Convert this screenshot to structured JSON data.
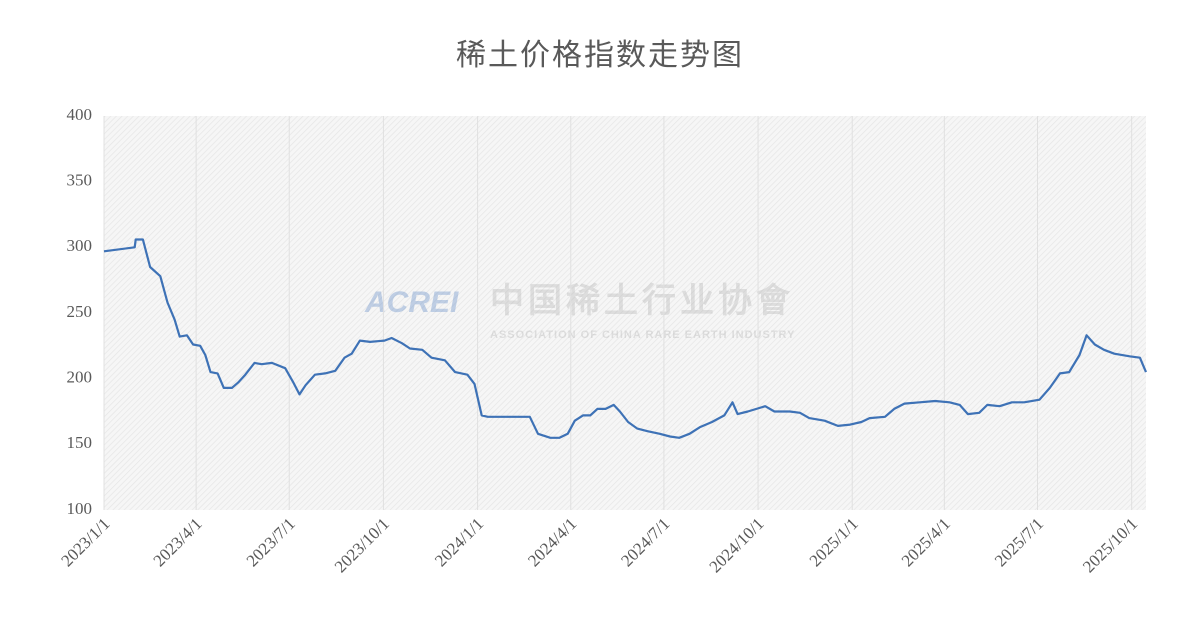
{
  "chart_data": {
    "type": "line",
    "title": "稀土价格指数走势图",
    "watermark": {
      "logo": "ACREI",
      "name": "中国稀土行业协會",
      "subtitle": "ASSOCIATION OF CHINA RARE EARTH INDUSTRY"
    },
    "x": [
      "2023/1/1",
      "2023/1/31",
      "2023/2/1",
      "2023/2/8",
      "2023/2/15",
      "2023/2/25",
      "2023/3/4",
      "2023/3/11",
      "2023/3/16",
      "2023/3/23",
      "2023/3/29",
      "2023/4/5",
      "2023/4/10",
      "2023/4/15",
      "2023/4/22",
      "2023/4/28",
      "2023/5/6",
      "2023/5/12",
      "2023/5/19",
      "2023/5/28",
      "2023/6/4",
      "2023/6/14",
      "2023/6/27",
      "2023/7/5",
      "2023/7/11",
      "2023/7/17",
      "2023/7/26",
      "2023/8/5",
      "2023/8/15",
      "2023/8/24",
      "2023/8/31",
      "2023/9/8",
      "2023/9/18",
      "2023/10/2",
      "2023/10/9",
      "2023/10/19",
      "2023/10/27",
      "2023/11/8",
      "2023/11/17",
      "2023/11/30",
      "2023/12/10",
      "2023/12/22",
      "2023/12/29",
      "2024/1/5",
      "2024/1/11",
      "2024/1/23",
      "2024/2/21",
      "2024/2/29",
      "2024/3/12",
      "2024/3/21",
      "2024/3/29",
      "2024/4/5",
      "2024/4/13",
      "2024/4/20",
      "2024/4/27",
      "2024/5/5",
      "2024/5/13",
      "2024/5/19",
      "2024/5/27",
      "2024/6/5",
      "2024/6/15",
      "2024/6/27",
      "2024/7/7",
      "2024/7/16",
      "2024/7/26",
      "2024/8/5",
      "2024/8/17",
      "2024/8/29",
      "2024/9/6",
      "2024/9/11",
      "2024/9/21",
      "2024/10/8",
      "2024/10/17",
      "2024/11/1",
      "2024/11/11",
      "2024/11/20",
      "2024/12/5",
      "2024/12/18",
      "2024/12/30",
      "2025/1/10",
      "2025/1/18",
      "2025/2/2",
      "2025/2/11",
      "2025/2/21",
      "2025/3/8",
      "2025/3/23",
      "2025/4/6",
      "2025/4/16",
      "2025/4/24",
      "2025/5/5",
      "2025/5/13",
      "2025/5/25",
      "2025/6/6",
      "2025/6/18",
      "2025/7/3",
      "2025/7/13",
      "2025/7/23",
      "2025/8/1",
      "2025/8/11",
      "2025/8/18",
      "2025/8/26",
      "2025/9/4",
      "2025/9/14",
      "2025/9/29",
      "2025/10/9",
      "2025/10/15"
    ],
    "series": [
      {
        "name": "稀土价格指数",
        "color": "#3e72b6",
        "values": [
          297,
          300,
          306,
          306,
          285,
          278,
          258,
          245,
          232,
          233,
          226,
          225,
          218,
          205,
          204,
          193,
          193,
          197,
          203,
          212,
          211,
          212,
          208,
          197,
          188,
          195,
          203,
          204,
          206,
          216,
          219,
          229,
          228,
          229,
          231,
          227,
          223,
          222,
          216,
          214,
          205,
          203,
          196,
          172,
          171,
          171,
          171,
          158,
          155,
          155,
          158,
          168,
          172,
          172,
          177,
          177,
          180,
          175,
          167,
          162,
          160,
          158,
          156,
          155,
          158,
          163,
          167,
          172,
          182,
          173,
          175,
          179,
          175,
          175,
          174,
          170,
          168,
          164,
          165,
          167,
          170,
          171,
          177,
          181,
          182,
          183,
          182,
          180,
          173,
          174,
          180,
          179,
          182,
          182,
          184,
          193,
          204,
          205,
          218,
          233,
          226,
          222,
          219,
          217,
          216,
          205
        ]
      }
    ],
    "xlim": [
      "2023/1/1",
      "2025/10/15"
    ],
    "xticks": [
      "2023/1/1",
      "2023/4/1",
      "2023/7/1",
      "2023/10/1",
      "2024/1/1",
      "2024/4/1",
      "2024/7/1",
      "2024/10/1",
      "2025/1/1",
      "2025/4/1",
      "2025/7/1",
      "2025/10/1"
    ],
    "ylim": [
      100,
      400
    ],
    "yticks": [
      100,
      150,
      200,
      250,
      300,
      350,
      400
    ],
    "grid": true
  }
}
